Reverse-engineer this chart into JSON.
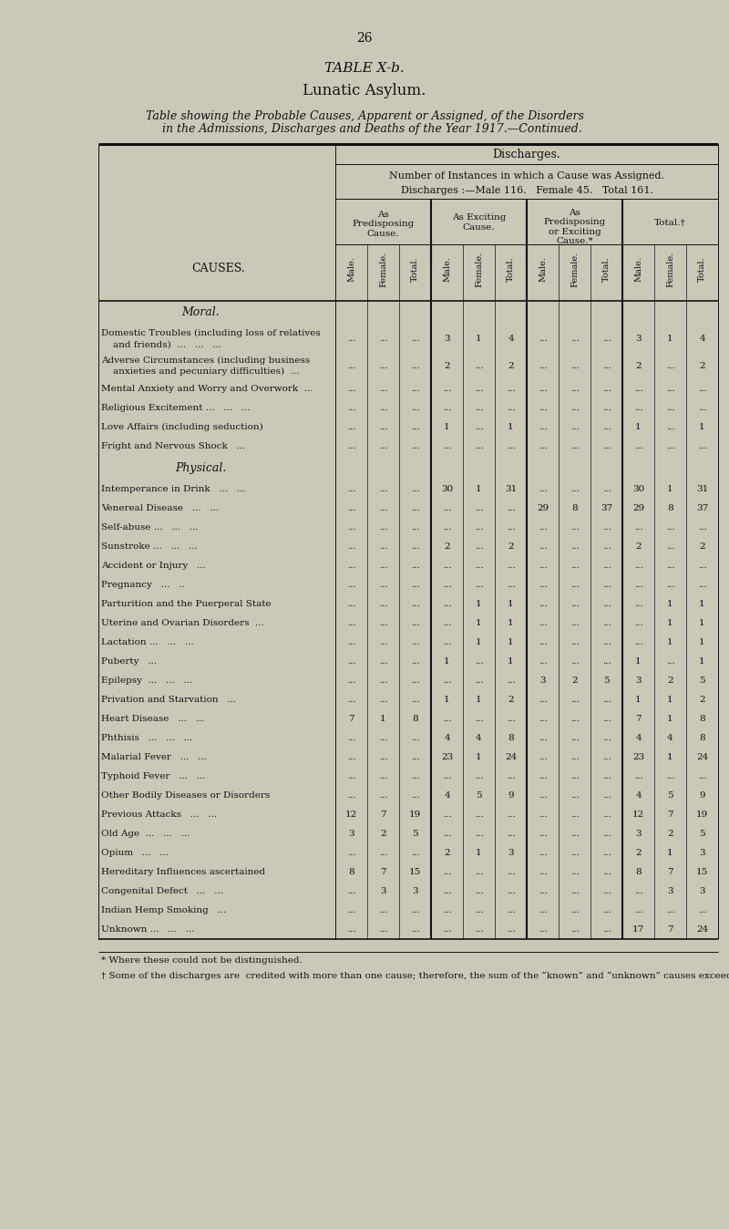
{
  "page_number": "26",
  "title1": "TABLE X-b.",
  "title2": "Lunatic Asylum.",
  "subtitle": "Table showing the Probable Causes, Apparent or Assigned, of the Disorders\n    in the Admissions, Discharges and Deaths of the Year 1917.—Continued.",
  "section_header": "Discharges.",
  "col_header1": "Number of Instances in which a Cause was Assigned.",
  "col_header2": "Discharges :—Male 116.   Female 45.   Total 161.",
  "group_headers": [
    "As\nPredisposing\nCause.",
    "As Exciting\nCause.",
    "As\nPredisposing\nor Exciting\nCause.*",
    "Total.†"
  ],
  "sub_headers": [
    "Male.",
    "Female.",
    "Total."
  ],
  "moral_header": "Moral.",
  "physical_header": "Physical.",
  "causes_col_label": "CAUSES.",
  "data": [
    {
      "label": "Domestic Troubles (including loss of relatives",
      "label2": "    and friends)  ...   ...   ...",
      "two_line": true,
      "pred": [
        "",
        "",
        ""
      ],
      "exc": [
        "3",
        "1",
        "4"
      ],
      "predexc": [
        "",
        "",
        ""
      ],
      "total": [
        "3",
        "1",
        "4"
      ]
    },
    {
      "label": "Adverse Circumstances (including business",
      "label2": "    anxieties and pecuniary difficulties)  ...",
      "two_line": true,
      "pred": [
        "",
        "",
        ""
      ],
      "exc": [
        "2",
        "",
        "2"
      ],
      "predexc": [
        "",
        "",
        ""
      ],
      "total": [
        "2",
        "",
        "2"
      ]
    },
    {
      "label": "Mental Anxiety and Worry and Overwork  ...",
      "two_line": false,
      "pred": [
        "",
        "",
        ""
      ],
      "exc": [
        "",
        "",
        ""
      ],
      "predexc": [
        "",
        "",
        ""
      ],
      "total": [
        "",
        "",
        ""
      ]
    },
    {
      "label": "Religious Excitement ...   ...   ...",
      "two_line": false,
      "pred": [
        "",
        "",
        ""
      ],
      "exc": [
        "",
        "",
        ""
      ],
      "predexc": [
        "",
        "",
        ""
      ],
      "total": [
        "",
        "",
        ""
      ]
    },
    {
      "label": "Love Affairs (including seduction)",
      "two_line": false,
      "pred": [
        "",
        "",
        ""
      ],
      "exc": [
        "1",
        "",
        "1"
      ],
      "predexc": [
        "",
        "",
        ""
      ],
      "total": [
        "1",
        "",
        "1"
      ]
    },
    {
      "label": "Fright and Nervous Shock   ...",
      "two_line": false,
      "pred": [
        "",
        "",
        ""
      ],
      "exc": [
        "",
        "",
        ""
      ],
      "predexc": [
        "",
        "",
        ""
      ],
      "total": [
        "",
        "",
        ""
      ]
    },
    {
      "label": "Intemperance in Drink   ...   ...",
      "two_line": false,
      "pred": [
        "",
        "",
        ""
      ],
      "exc": [
        "30",
        "1",
        "31"
      ],
      "predexc": [
        "",
        "",
        ""
      ],
      "total": [
        "30",
        "1",
        "31"
      ]
    },
    {
      "label": "Venereal Disease   ...   ...",
      "two_line": false,
      "pred": [
        "",
        "",
        ""
      ],
      "exc": [
        "",
        "",
        ""
      ],
      "predexc": [
        "29",
        "8",
        "37"
      ],
      "total": [
        "29",
        "8",
        "37"
      ]
    },
    {
      "label": "Self-abuse ...   ...   ...",
      "two_line": false,
      "pred": [
        "",
        "",
        ""
      ],
      "exc": [
        "",
        "",
        ""
      ],
      "predexc": [
        "",
        "",
        ""
      ],
      "total": [
        "",
        "",
        ""
      ]
    },
    {
      "label": "Sunstroke ...   ...   ...",
      "two_line": false,
      "pred": [
        "",
        "",
        ""
      ],
      "exc": [
        "2",
        "",
        "2"
      ],
      "predexc": [
        "",
        "",
        ""
      ],
      "total": [
        "2",
        "",
        "2"
      ]
    },
    {
      "label": "Accident or Injury   ...",
      "two_line": false,
      "pred": [
        "",
        "",
        ""
      ],
      "exc": [
        "",
        "",
        ""
      ],
      "predexc": [
        "",
        "",
        ""
      ],
      "total": [
        "",
        "",
        ""
      ]
    },
    {
      "label": "Pregnancy   ...   ..",
      "two_line": false,
      "pred": [
        "",
        "",
        ""
      ],
      "exc": [
        "",
        "",
        ""
      ],
      "predexc": [
        "",
        "",
        ""
      ],
      "total": [
        "",
        "",
        ""
      ]
    },
    {
      "label": "Parturition and the Puerperal State",
      "two_line": false,
      "pred": [
        "",
        "",
        ""
      ],
      "exc": [
        "",
        "1",
        "1"
      ],
      "predexc": [
        "",
        "",
        ""
      ],
      "total": [
        "",
        "1",
        "1"
      ]
    },
    {
      "label": "Uterine and Ovarian Disorders  ...",
      "two_line": false,
      "pred": [
        "",
        "",
        ""
      ],
      "exc": [
        "",
        "1",
        "1"
      ],
      "predexc": [
        "",
        "",
        ""
      ],
      "total": [
        "",
        "1",
        "1"
      ]
    },
    {
      "label": "Lactation ...   ...   ...",
      "two_line": false,
      "pred": [
        "",
        "",
        ""
      ],
      "exc": [
        "",
        "1",
        "1"
      ],
      "predexc": [
        "",
        "",
        ""
      ],
      "total": [
        "",
        "1",
        "1"
      ]
    },
    {
      "label": "Puberty   ...",
      "two_line": false,
      "pred": [
        "",
        "",
        ""
      ],
      "exc": [
        "1",
        "",
        "1"
      ],
      "predexc": [
        "",
        "",
        ""
      ],
      "total": [
        "1",
        "",
        "1"
      ]
    },
    {
      "label": "Epilepsy  ...   ...   ...",
      "two_line": false,
      "pred": [
        "",
        "",
        ""
      ],
      "exc": [
        "",
        "",
        ""
      ],
      "predexc": [
        "3",
        "2",
        "5"
      ],
      "total": [
        "3",
        "2",
        "5"
      ]
    },
    {
      "label": "Privation and Starvation   ...",
      "two_line": false,
      "pred": [
        "",
        "",
        ""
      ],
      "exc": [
        "1",
        "1",
        "2"
      ],
      "predexc": [
        "",
        "",
        ""
      ],
      "total": [
        "1",
        "1",
        "2"
      ]
    },
    {
      "label": "Heart Disease   ...   ...",
      "two_line": false,
      "pred": [
        "7",
        "1",
        "8"
      ],
      "exc": [
        "",
        "",
        ""
      ],
      "predexc": [
        "",
        "",
        ""
      ],
      "total": [
        "7",
        "1",
        "8"
      ]
    },
    {
      "label": "Phthisis   ...   ...   ...",
      "two_line": false,
      "pred": [
        "",
        "",
        ""
      ],
      "exc": [
        "4",
        "4",
        "8"
      ],
      "predexc": [
        "",
        "",
        ""
      ],
      "total": [
        "4",
        "4",
        "8"
      ]
    },
    {
      "label": "Malarial Fever   ...   ...",
      "two_line": false,
      "pred": [
        "",
        "",
        ""
      ],
      "exc": [
        "23",
        "1",
        "24"
      ],
      "predexc": [
        "",
        "",
        ""
      ],
      "total": [
        "23",
        "1",
        "24"
      ]
    },
    {
      "label": "Typhoid Fever   ...   ...",
      "two_line": false,
      "pred": [
        "",
        "",
        ""
      ],
      "exc": [
        "",
        "",
        ""
      ],
      "predexc": [
        "",
        "",
        ""
      ],
      "total": [
        "",
        "",
        ""
      ]
    },
    {
      "label": "Other Bodily Diseases or Disorders",
      "two_line": false,
      "pred": [
        "",
        "",
        ""
      ],
      "exc": [
        "4",
        "5",
        "9"
      ],
      "predexc": [
        "",
        "",
        ""
      ],
      "total": [
        "4",
        "5",
        "9"
      ]
    },
    {
      "label": "Previous Attacks   ...   ...",
      "two_line": false,
      "pred": [
        "12",
        "7",
        "19"
      ],
      "exc": [
        "",
        "",
        ""
      ],
      "predexc": [
        "",
        "",
        ""
      ],
      "total": [
        "12",
        "7",
        "19"
      ]
    },
    {
      "label": "Old Age  ...   ...   ...",
      "two_line": false,
      "pred": [
        "3",
        "2",
        "5"
      ],
      "exc": [
        "",
        "",
        ""
      ],
      "predexc": [
        "",
        "",
        ""
      ],
      "total": [
        "3",
        "2",
        "5"
      ]
    },
    {
      "label": "Opium   ...   ...",
      "two_line": false,
      "pred": [
        "",
        "",
        ""
      ],
      "exc": [
        "2",
        "1",
        "3"
      ],
      "predexc": [
        "",
        "",
        ""
      ],
      "total": [
        "2",
        "1",
        "3"
      ]
    },
    {
      "label": "Hereditary Influences ascertained",
      "two_line": false,
      "pred": [
        "8",
        "7",
        "15"
      ],
      "exc": [
        "",
        "",
        ""
      ],
      "predexc": [
        "",
        "",
        ""
      ],
      "total": [
        "8",
        "7",
        "15"
      ]
    },
    {
      "label": "Congenital Defect   ...   ...",
      "two_line": false,
      "pred": [
        "",
        "3",
        "3"
      ],
      "exc": [
        "",
        "",
        ""
      ],
      "predexc": [
        "",
        "",
        ""
      ],
      "total": [
        "",
        "3",
        "3"
      ]
    },
    {
      "label": "Indian Hemp Smoking   ...",
      "two_line": false,
      "pred": [
        "",
        "",
        ""
      ],
      "exc": [
        "",
        "",
        ""
      ],
      "predexc": [
        "",
        "",
        ""
      ],
      "total": [
        "",
        "",
        ""
      ]
    },
    {
      "label": "Unknown ...   ...   ...",
      "two_line": false,
      "pred": [
        "",
        "",
        ""
      ],
      "exc": [
        "",
        "",
        ""
      ],
      "predexc": [
        "",
        "",
        ""
      ],
      "total": [
        "17",
        "7",
        "24"
      ]
    }
  ],
  "footnote1": "* Where these could not be distinguished.",
  "footnote2": "† Some of the discharges are  credited with more than one cause; therefore, the sum of the “known” and “unknown” causes exceeds that of the discharges.",
  "bg_color": "#ccc8b8",
  "text_color": "#111111"
}
